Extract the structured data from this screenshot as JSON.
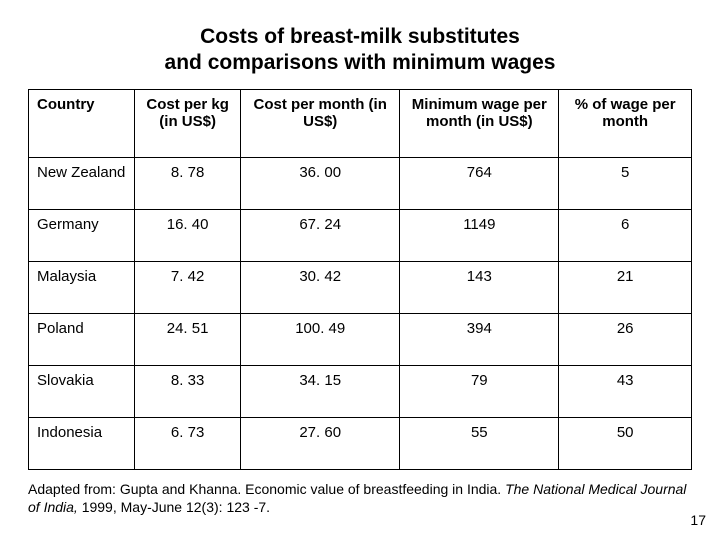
{
  "title_line1": "Costs of breast-milk substitutes",
  "title_line2": "and comparisons with minimum wages",
  "columns": [
    "Country",
    "Cost per kg\n(in US$)",
    "Cost per month (in US$)",
    "Minimum wage per month (in US$)",
    "% of wage per month"
  ],
  "rows": [
    {
      "country": "New Zealand",
      "cost_kg": "8. 78",
      "cost_month": "36. 00",
      "min_wage": "764",
      "pct": "5"
    },
    {
      "country": "Germany",
      "cost_kg": "16. 40",
      "cost_month": "67. 24",
      "min_wage": "1149",
      "pct": "6"
    },
    {
      "country": "Malaysia",
      "cost_kg": "7. 42",
      "cost_month": "30. 42",
      "min_wage": "143",
      "pct": "21"
    },
    {
      "country": "Poland",
      "cost_kg": "24. 51",
      "cost_month": "100. 49",
      "min_wage": "394",
      "pct": "26"
    },
    {
      "country": "Slovakia",
      "cost_kg": "8. 33",
      "cost_month": "34. 15",
      "min_wage": "79",
      "pct": "43"
    },
    {
      "country": "Indonesia",
      "cost_kg": "6. 73",
      "cost_month": "27. 60",
      "min_wage": "55",
      "pct": "50"
    }
  ],
  "caption_prefix": "Adapted from: Gupta and Khanna. Economic value of breastfeeding in India. ",
  "caption_italic": "The National Medical Journal of India, ",
  "caption_suffix": "1999, May-June 12(3): 123 -7.",
  "page_number": "17",
  "colors": {
    "background": "#ffffff",
    "text": "#000000",
    "border": "#000000"
  },
  "widths_pct": [
    16,
    16,
    24,
    24,
    20
  ]
}
